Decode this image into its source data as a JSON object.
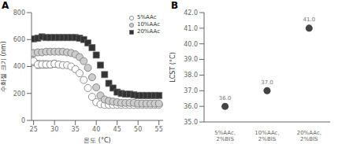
{
  "chart_data": [
    {
      "type": "scatter",
      "title": "A",
      "xlabel": "온도 (°C)",
      "ylabel": "수화젤 크기 (nm)",
      "x": [
        25,
        26,
        27,
        28,
        29,
        30,
        31,
        32,
        33,
        34,
        35,
        36,
        37,
        38,
        39,
        40,
        41,
        42,
        43,
        44,
        45,
        46,
        47,
        48,
        49,
        50,
        51,
        52,
        53,
        54,
        55
      ],
      "series": [
        {
          "name": "5%AAc",
          "color": "white",
          "marker": "o",
          "values": [
            440,
            415,
            415,
            415,
            415,
            420,
            415,
            410,
            410,
            400,
            380,
            350,
            300,
            240,
            175,
            135,
            120,
            115,
            115,
            115,
            115,
            115,
            115,
            115,
            115,
            115,
            115,
            115,
            115,
            115,
            115
          ],
          "errors": [
            35,
            30,
            28,
            28,
            25,
            25,
            22,
            20,
            18,
            15,
            12,
            10,
            10,
            10,
            8,
            5,
            0,
            0,
            0,
            0,
            0,
            0,
            0,
            0,
            0,
            0,
            0,
            0,
            0,
            0,
            0
          ]
        },
        {
          "name": "10%AAc",
          "color": "#cccccc",
          "marker": "o",
          "values": [
            500,
            505,
            505,
            510,
            510,
            510,
            510,
            510,
            505,
            500,
            490,
            470,
            440,
            390,
            320,
            245,
            185,
            155,
            145,
            140,
            135,
            130,
            130,
            130,
            130,
            125,
            125,
            125,
            125,
            125,
            125
          ]
        },
        {
          "name": "20%AAc",
          "color": "#333333",
          "marker": "s",
          "values": [
            605,
            610,
            620,
            615,
            615,
            615,
            615,
            615,
            615,
            615,
            615,
            610,
            600,
            575,
            540,
            485,
            410,
            340,
            275,
            240,
            210,
            200,
            195,
            195,
            190,
            185,
            185,
            185,
            185,
            185,
            185
          ]
        }
      ],
      "xlim": [
        24.5,
        56
      ],
      "xticks": [
        25,
        30,
        35,
        40,
        45,
        50,
        55
      ],
      "ylim": [
        0,
        800
      ],
      "yticks": [
        0,
        200,
        400,
        600,
        800
      ],
      "legend": "upper right",
      "grid": false
    },
    {
      "type": "scatter",
      "title": "B",
      "ylabel": "LCST (°C)",
      "categories": [
        "5%AAc,\n2%BIS",
        "10%AAc,\n2%BIS",
        "20%AAc,\n2%BIS"
      ],
      "values": [
        36.0,
        37.0,
        41.0
      ],
      "value_labels": [
        "36.0",
        "37.0",
        "41.0"
      ],
      "data_labels": true,
      "color": "#444444",
      "ylim": [
        35.0,
        42.0
      ],
      "yticks": [
        {
          "value": 35.0,
          "label": "35.0"
        },
        {
          "value": 36.0,
          "label": "36.0"
        },
        {
          "value": 37.0,
          "label": "37.0"
        },
        {
          "value": 38.0,
          "label": "38.0"
        },
        {
          "value": 39.0,
          "label": "39.0"
        },
        {
          "value": 40.0,
          "label": "40.0"
        },
        {
          "value": 41.0,
          "label": "41.0"
        },
        {
          "value": 42.0,
          "label": "42.0"
        }
      ],
      "grid": false
    }
  ]
}
